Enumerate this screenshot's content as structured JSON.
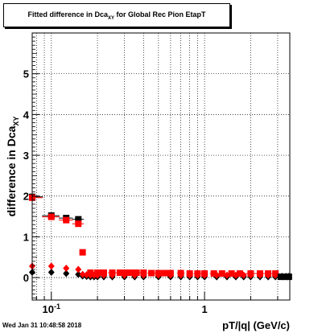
{
  "title": {
    "prefix": "Fitted difference in Dca",
    "sub": "XY",
    "suffix": " for Global Rec Pion EtapT"
  },
  "timestamp": "Wed Jan 31 10:48:58 2018",
  "colors": {
    "black": "#000000",
    "red": "#ff0000",
    "grid": "#000000"
  },
  "chart_data": {
    "type": "scatter",
    "xlabel": "pT/|q| (GeV/c)",
    "ylabel": "difference in Dca",
    "ylabel_sub": "XY",
    "x_scale": "log",
    "xlim": [
      0.075,
      3.6
    ],
    "ylim": [
      -0.55,
      6.0
    ],
    "grid": true,
    "y_ticks": [
      0,
      1,
      2,
      3,
      4,
      5
    ],
    "y_tick_labels": [
      "0",
      "1",
      "2",
      "3",
      "4",
      "5"
    ],
    "x_tick_labels": [
      {
        "value": 0.1,
        "base": "10",
        "exp": "-1"
      },
      {
        "value": 1,
        "base": "1",
        "exp": ""
      }
    ],
    "series": [
      {
        "color": "black",
        "marker": "square",
        "x": [
          0.075,
          0.1,
          0.125,
          0.15
        ],
        "y": [
          1.98,
          1.52,
          1.46,
          1.43
        ],
        "xerr": [
          0.013,
          0.013,
          0.013,
          0.013
        ]
      },
      {
        "color": "red",
        "marker": "square",
        "x": [
          0.075,
          0.1,
          0.125,
          0.15,
          0.16
        ],
        "y": [
          1.96,
          1.49,
          1.41,
          1.32,
          0.62
        ],
        "xerr": [
          0.013,
          0.013,
          0.013,
          0.013,
          0.004
        ]
      },
      {
        "color": "black",
        "marker": "diamond",
        "x": [
          0.075,
          0.1,
          0.125,
          0.15,
          0.16,
          0.17,
          0.18,
          0.19,
          0.2,
          0.22,
          0.25,
          0.3,
          0.35,
          0.4,
          0.5,
          0.6,
          0.7,
          0.8,
          0.9,
          1.0,
          1.2,
          1.4,
          1.6,
          1.8,
          2.0,
          2.3,
          2.6,
          2.9,
          3.2,
          3.4,
          3.55
        ],
        "y": [
          0.13,
          0.13,
          0.1,
          0.08,
          0.04,
          0.03,
          0.02,
          0.02,
          0.02,
          0.02,
          0.02,
          0.02,
          0.02,
          0.02,
          0.02,
          0.02,
          0.02,
          0.02,
          0.02,
          0.02,
          0.02,
          0.02,
          0.02,
          0.02,
          0.02,
          0.02,
          0.02,
          0.02,
          0.03,
          0.03,
          0.03
        ]
      },
      {
        "color": "red",
        "marker": "diamond",
        "x": [
          0.075,
          0.1,
          0.125,
          0.15,
          0.16,
          0.17,
          0.18,
          0.19,
          0.2,
          0.22,
          0.25,
          0.3,
          0.35,
          0.4,
          0.5,
          0.6,
          0.7,
          0.8,
          0.9,
          1.0,
          1.2,
          1.4,
          1.6,
          1.8,
          2.0,
          2.3,
          2.6,
          2.9
        ],
        "y": [
          0.28,
          0.28,
          0.23,
          0.2,
          0.08,
          0.07,
          0.06,
          0.06,
          0.06,
          0.06,
          0.06,
          0.06,
          0.06,
          0.06,
          0.06,
          0.06,
          0.06,
          0.06,
          0.06,
          0.06,
          0.06,
          0.06,
          0.06,
          0.06,
          0.06,
          0.06,
          0.06,
          0.06
        ]
      },
      {
        "color": "red",
        "marker": "square",
        "x": [
          0.18,
          0.2,
          0.22,
          0.25,
          0.28,
          0.3,
          0.33,
          0.36,
          0.4,
          0.45,
          0.5,
          0.55,
          0.6,
          0.7,
          0.8,
          0.9,
          1.0,
          1.15,
          1.3,
          1.5,
          1.7,
          2.0,
          2.3,
          2.6,
          2.9
        ],
        "y": [
          0.12,
          0.12,
          0.12,
          0.12,
          0.12,
          0.12,
          0.12,
          0.12,
          0.12,
          0.11,
          0.11,
          0.11,
          0.11,
          0.11,
          0.1,
          0.1,
          0.1,
          0.1,
          0.1,
          0.1,
          0.1,
          0.1,
          0.1,
          0.1,
          0.1
        ],
        "xerr": [
          0.01,
          0.01,
          0.01,
          0.015,
          0.015,
          0.015,
          0.015,
          0.02,
          0.02,
          0.025,
          0.025,
          0.025,
          0.03,
          0.04,
          0.04,
          0.05,
          0.05,
          0.07,
          0.07,
          0.1,
          0.1,
          0.15,
          0.15,
          0.15,
          0.15
        ]
      },
      {
        "color": "black",
        "marker": "square",
        "x": [
          3.15,
          3.35,
          3.55
        ],
        "y": [
          0.02,
          0.02,
          0.02
        ],
        "xerr": [
          0.08,
          0.08,
          0.06
        ]
      }
    ]
  }
}
